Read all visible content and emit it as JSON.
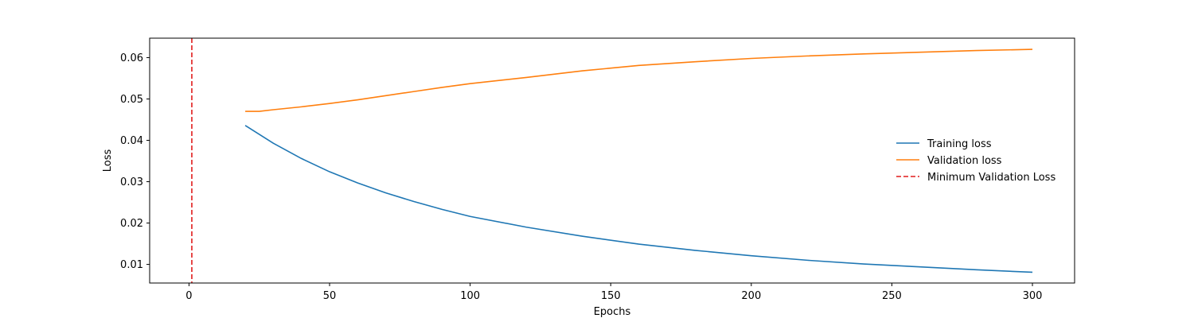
{
  "chart_data": {
    "type": "line",
    "title": "",
    "xlabel": "Epochs",
    "ylabel": "Loss",
    "xlim": [
      -14,
      315
    ],
    "ylim": [
      0.0055,
      0.0647
    ],
    "xticks": [
      0,
      50,
      100,
      150,
      200,
      250,
      300
    ],
    "xtick_labels": [
      "0",
      "50",
      "100",
      "150",
      "200",
      "250",
      "300"
    ],
    "yticks": [
      0.01,
      0.02,
      0.03,
      0.04,
      0.05,
      0.06
    ],
    "ytick_labels": [
      "0.01",
      "0.02",
      "0.03",
      "0.04",
      "0.05",
      "0.06"
    ],
    "grid": false,
    "legend_position": "center-right",
    "series": [
      {
        "name": "Training loss",
        "color": "#1f77b4",
        "style": "solid",
        "x": [
          20,
          30,
          40,
          50,
          60,
          70,
          80,
          90,
          100,
          120,
          140,
          160,
          180,
          200,
          220,
          240,
          260,
          280,
          300
        ],
        "y": [
          0.0436,
          0.0393,
          0.0356,
          0.0324,
          0.0297,
          0.0273,
          0.0252,
          0.0233,
          0.0216,
          0.019,
          0.0168,
          0.0149,
          0.0134,
          0.0121,
          0.011,
          0.0101,
          0.0094,
          0.0087,
          0.0081
        ]
      },
      {
        "name": "Validation loss",
        "color": "#ff7f0e",
        "style": "solid",
        "x": [
          20,
          25,
          30,
          40,
          50,
          60,
          70,
          80,
          90,
          100,
          120,
          140,
          160,
          180,
          200,
          220,
          240,
          260,
          280,
          300
        ],
        "y": [
          0.047,
          0.047,
          0.0474,
          0.0481,
          0.0489,
          0.0498,
          0.0508,
          0.0518,
          0.0528,
          0.0537,
          0.0552,
          0.0568,
          0.0581,
          0.059,
          0.0598,
          0.0604,
          0.0609,
          0.0613,
          0.0617,
          0.062
        ]
      }
    ],
    "vlines": [
      {
        "name": "Minimum Validation Loss",
        "x": 1,
        "color": "#e01b1b",
        "style": "dashed"
      }
    ]
  }
}
